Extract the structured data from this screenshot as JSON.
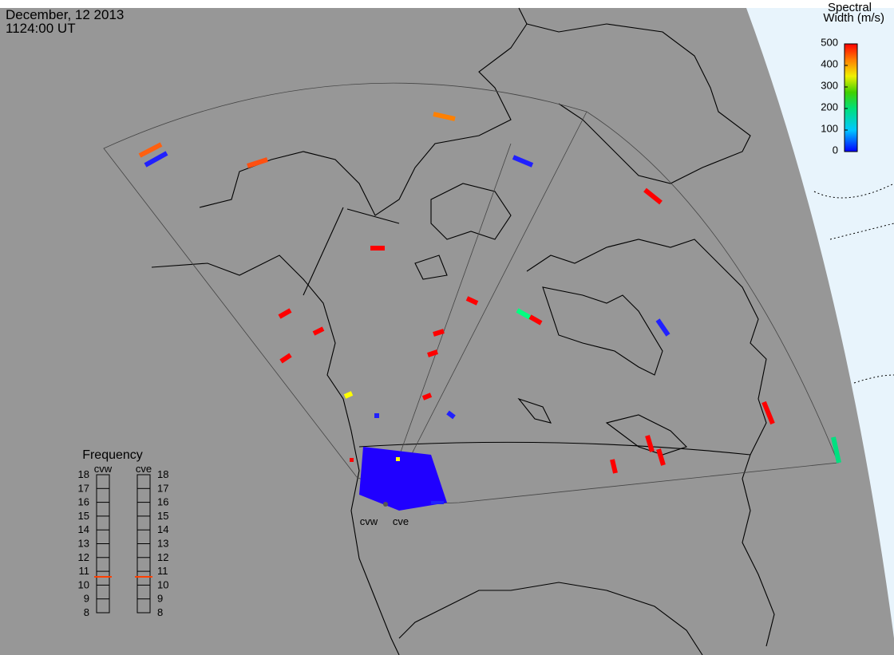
{
  "header": {
    "date": "December, 12 2013",
    "time": "1124:00 UT"
  },
  "colorbar": {
    "title": [
      "Spectral",
      "Width (m/s)"
    ],
    "lim": [
      0,
      500
    ],
    "ticks": [
      0,
      100,
      200,
      300,
      400,
      500
    ]
  },
  "frequency": {
    "title": "Frequency",
    "lim": [
      8,
      18
    ],
    "ticks": [
      8,
      9,
      10,
      11,
      12,
      13,
      14,
      15,
      16,
      17,
      18
    ],
    "radars": [
      {
        "name": "cvw",
        "value": 10.6
      },
      {
        "name": "cve",
        "value": 10.6
      }
    ]
  },
  "radars": [
    {
      "label": "cvw"
    },
    {
      "label": "cve"
    }
  ]
}
